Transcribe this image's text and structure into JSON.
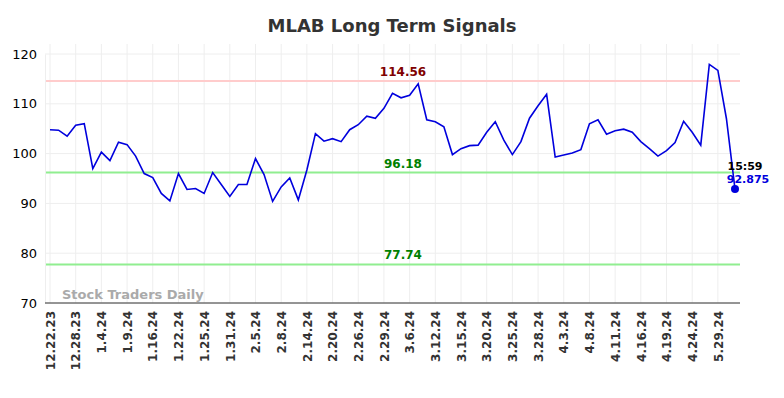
{
  "chart_data": {
    "type": "line",
    "title": "MLAB Long Term Signals",
    "watermark": "Stock Traders Daily",
    "last_time": "15:59",
    "color": "#0000dd",
    "grid": true,
    "categories": [
      "12.22.23",
      null,
      null,
      "12.28.23",
      null,
      null,
      "1.4.24",
      null,
      null,
      "1.9.24",
      null,
      null,
      "1.16.24",
      null,
      null,
      "1.22.24",
      null,
      null,
      "1.25.24",
      null,
      null,
      "1.31.24",
      null,
      null,
      "2.5.24",
      null,
      null,
      "2.8.24",
      null,
      null,
      "2.14.24",
      null,
      null,
      "2.20.24",
      null,
      null,
      "2.26.24",
      null,
      null,
      "2.29.24",
      null,
      null,
      "3.6.24",
      null,
      null,
      "3.12.24",
      null,
      null,
      "3.15.24",
      null,
      null,
      "3.20.24",
      null,
      null,
      "3.25.24",
      null,
      null,
      "3.28.24",
      null,
      null,
      "4.3.24",
      null,
      null,
      "4.8.24",
      null,
      null,
      "4.11.24",
      null,
      null,
      "4.16.24",
      null,
      null,
      "4.19.24",
      null,
      null,
      "4.24.24",
      null,
      null,
      "5.29.24",
      null,
      null
    ],
    "values": [
      104.8,
      104.7,
      103.5,
      105.7,
      106,
      97,
      100.3,
      98.6,
      102.3,
      101.8,
      99.5,
      96,
      95.2,
      92,
      90.5,
      96,
      92.8,
      93,
      92,
      96.2,
      93.8,
      91.4,
      93.8,
      93.8,
      99,
      95.8,
      90.4,
      93.3,
      95.1,
      90.7,
      96.7,
      104,
      102.5,
      103,
      102.4,
      104.8,
      105.8,
      107.5,
      107.1,
      109.1,
      112.1,
      111.2,
      111.7,
      114,
      106.8,
      106.4,
      105.4,
      99.8,
      101,
      101.6,
      101.7,
      104.3,
      106.4,
      102.7,
      99.8,
      102.4,
      107.1,
      109.6,
      111.9,
      99.3,
      99.7,
      100.1,
      100.8,
      106,
      106.8,
      103.9,
      104.6,
      104.9,
      104.3,
      102.4,
      101,
      99.5,
      100.6,
      102.2,
      106.5,
      104.3,
      101.7,
      117.9,
      116.7,
      107,
      92.875
    ],
    "levels": [
      {
        "value": 114.56,
        "color": "#ffcccc"
      },
      {
        "value": 96.18,
        "color": "#90ee90"
      },
      {
        "value": 77.74,
        "color": "#90ee90"
      }
    ],
    "ylim": [
      70,
      120
    ],
    "yticks": [
      70,
      80,
      90,
      100,
      110,
      120
    ]
  }
}
